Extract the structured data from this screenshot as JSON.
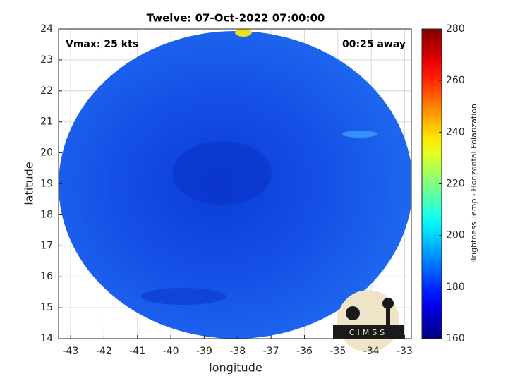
{
  "chart_data": {
    "type": "image",
    "title": "Twelve: 07-Oct-2022 07:00:00",
    "annotations": [
      "Vmax: 25 kts",
      "00:25 away"
    ],
    "xlabel": "longitude",
    "ylabel": "latitude",
    "xlim": [
      -43.36,
      -32.8
    ],
    "ylim": [
      14,
      24
    ],
    "xticks": [
      -43,
      -42,
      -41,
      -40,
      -39,
      -38,
      -37,
      -36,
      -35,
      -34,
      -33
    ],
    "yticks": [
      14,
      15,
      16,
      17,
      18,
      19,
      20,
      21,
      22,
      23,
      24
    ],
    "grid": true,
    "colorbar": {
      "label": "Brightness Temp - Horizontal Polarization",
      "lim": [
        160,
        280
      ],
      "ticks": [
        160,
        180,
        200,
        220,
        240,
        260,
        280
      ],
      "colormap": "jet"
    },
    "logo": "CIMSS"
  }
}
